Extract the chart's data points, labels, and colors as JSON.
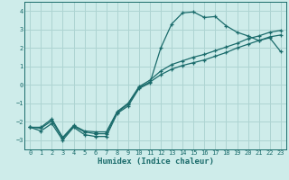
{
  "xlabel": "Humidex (Indice chaleur)",
  "bg_color": "#ceecea",
  "grid_color": "#aed4d2",
  "line_color": "#1a6b6b",
  "xlim": [
    -0.5,
    23.5
  ],
  "ylim": [
    -3.5,
    4.5
  ],
  "xticks": [
    0,
    1,
    2,
    3,
    4,
    5,
    6,
    7,
    8,
    9,
    10,
    11,
    12,
    13,
    14,
    15,
    16,
    17,
    18,
    19,
    20,
    21,
    22,
    23
  ],
  "yticks": [
    -3,
    -2,
    -1,
    0,
    1,
    2,
    3,
    4
  ],
  "series1_x": [
    0,
    1,
    2,
    3,
    4,
    5,
    6,
    7,
    8,
    9,
    10,
    11,
    12,
    13,
    14,
    15,
    16,
    17,
    18,
    19,
    20,
    21,
    22,
    23
  ],
  "series1_y": [
    -2.3,
    -2.5,
    -2.1,
    -3.0,
    -2.3,
    -2.7,
    -2.8,
    -2.8,
    -1.55,
    -1.15,
    -0.2,
    0.1,
    2.0,
    3.3,
    3.9,
    3.95,
    3.65,
    3.7,
    3.2,
    2.85,
    2.65,
    2.4,
    2.55,
    1.8
  ],
  "series2_x": [
    0,
    1,
    2,
    3,
    4,
    5,
    6,
    7,
    8,
    9,
    10,
    11,
    12,
    13,
    14,
    15,
    16,
    17,
    18,
    19,
    20,
    21,
    22,
    23
  ],
  "series2_y": [
    -2.3,
    -2.3,
    -1.85,
    -2.85,
    -2.2,
    -2.5,
    -2.55,
    -2.55,
    -1.45,
    -1.0,
    -0.1,
    0.25,
    0.75,
    1.1,
    1.3,
    1.5,
    1.65,
    1.85,
    2.05,
    2.25,
    2.5,
    2.65,
    2.85,
    2.95
  ],
  "series3_x": [
    0,
    1,
    2,
    3,
    4,
    5,
    6,
    7,
    8,
    9,
    10,
    11,
    12,
    13,
    14,
    15,
    16,
    17,
    18,
    19,
    20,
    21,
    22,
    23
  ],
  "series3_y": [
    -2.3,
    -2.35,
    -1.95,
    -2.9,
    -2.25,
    -2.55,
    -2.65,
    -2.65,
    -1.5,
    -1.05,
    -0.15,
    0.15,
    0.55,
    0.85,
    1.05,
    1.2,
    1.35,
    1.55,
    1.75,
    2.0,
    2.2,
    2.4,
    2.6,
    2.7
  ]
}
